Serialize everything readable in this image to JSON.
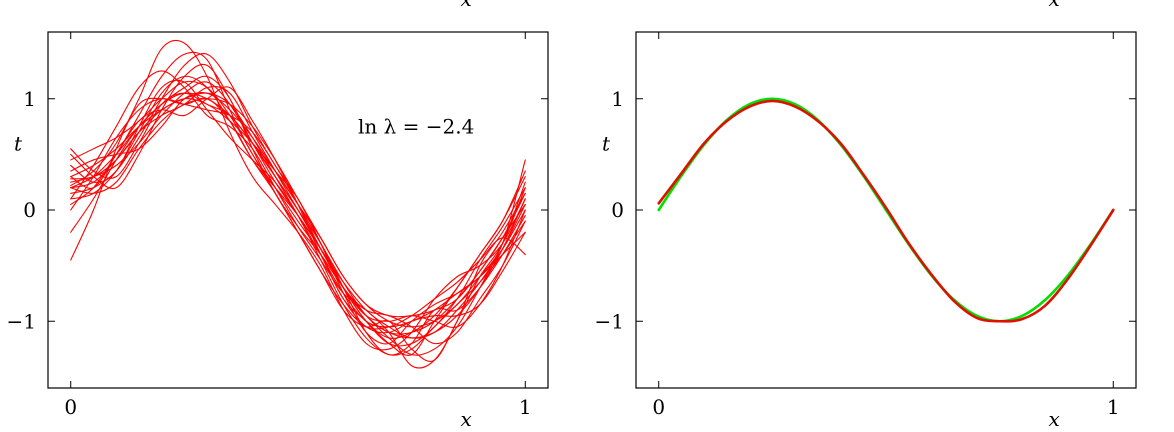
{
  "chart_data": [
    {
      "type": "line",
      "title": "",
      "xlabel": "x",
      "ylabel": "t",
      "xlim": [
        -0.05,
        1.05
      ],
      "ylim": [
        -1.6,
        1.6
      ],
      "xticks": [
        0,
        1
      ],
      "yticks": [
        -1,
        0,
        1
      ],
      "x": [
        0,
        0.05,
        0.1,
        0.15,
        0.2,
        0.25,
        0.3,
        0.35,
        0.4,
        0.45,
        0.5,
        0.55,
        0.6,
        0.65,
        0.7,
        0.75,
        0.8,
        0.85,
        0.9,
        0.95,
        1.0
      ],
      "annotation": "ln λ = −2.4",
      "color": "#ff0000",
      "series": [
        {
          "values": [
            0.22,
            0.35,
            0.6,
            1.0,
            1.45,
            1.5,
            1.2,
            0.7,
            0.3,
            0.05,
            -0.2,
            -0.5,
            -0.9,
            -1.2,
            -1.25,
            -1.1,
            -0.8,
            -0.6,
            -0.5,
            -0.3,
            0.1
          ]
        },
        {
          "values": [
            0.3,
            0.2,
            0.5,
            0.85,
            1.2,
            1.4,
            1.35,
            0.9,
            0.5,
            0.2,
            -0.1,
            -0.4,
            -0.8,
            -1.0,
            -1.2,
            -1.3,
            -1.0,
            -0.7,
            -0.4,
            -0.1,
            0.3
          ]
        },
        {
          "values": [
            -0.45,
            0.0,
            0.55,
            0.95,
            1.0,
            0.95,
            1.0,
            0.8,
            0.45,
            0.15,
            -0.2,
            -0.55,
            -0.9,
            -1.05,
            -1.0,
            -1.25,
            -1.35,
            -1.0,
            -0.6,
            -0.3,
            0.2
          ]
        },
        {
          "values": [
            0.5,
            0.3,
            0.2,
            0.5,
            0.9,
            1.2,
            1.3,
            1.0,
            0.6,
            0.3,
            0.0,
            -0.3,
            -0.7,
            -1.1,
            -1.3,
            -1.2,
            -0.9,
            -0.9,
            -0.7,
            -0.4,
            -0.05
          ]
        },
        {
          "values": [
            0.2,
            0.25,
            0.45,
            0.7,
            0.85,
            0.95,
            1.1,
            1.05,
            0.7,
            0.35,
            0.0,
            -0.35,
            -0.7,
            -0.9,
            -0.95,
            -1.05,
            -1.2,
            -1.1,
            -0.8,
            -0.5,
            -0.1
          ]
        },
        {
          "values": [
            0.1,
            0.4,
            0.75,
            1.1,
            1.25,
            1.1,
            0.85,
            0.75,
            0.55,
            0.2,
            -0.15,
            -0.45,
            -0.75,
            -0.9,
            -1.1,
            -1.4,
            -1.35,
            -1.0,
            -0.5,
            -0.2,
            0.15
          ]
        },
        {
          "values": [
            0.55,
            0.35,
            0.3,
            0.6,
            0.95,
            1.05,
            0.95,
            0.85,
            0.6,
            0.35,
            0.1,
            -0.3,
            -0.75,
            -1.1,
            -1.2,
            -1.0,
            -0.85,
            -0.75,
            -0.6,
            -0.35,
            0.0
          ]
        },
        {
          "values": [
            0.05,
            0.2,
            0.5,
            0.8,
            0.9,
            0.85,
            1.0,
            1.1,
            0.8,
            0.45,
            0.05,
            -0.4,
            -0.8,
            -1.05,
            -1.1,
            -1.0,
            -0.95,
            -0.95,
            -0.85,
            -0.55,
            -0.2
          ]
        },
        {
          "values": [
            0.25,
            0.3,
            0.4,
            0.6,
            0.85,
            1.05,
            1.15,
            0.95,
            0.6,
            0.25,
            -0.05,
            -0.35,
            -0.65,
            -0.9,
            -1.05,
            -1.15,
            -1.1,
            -0.9,
            -0.65,
            -0.35,
            0.05
          ]
        },
        {
          "values": [
            -0.2,
            0.1,
            0.45,
            0.75,
            0.95,
            1.1,
            1.2,
            1.0,
            0.55,
            0.15,
            -0.15,
            -0.4,
            -0.7,
            -0.95,
            -1.15,
            -1.3,
            -1.25,
            -1.05,
            -0.7,
            -0.3,
            0.25
          ]
        },
        {
          "values": [
            0.35,
            0.45,
            0.5,
            0.55,
            0.75,
            1.0,
            1.05,
            0.9,
            0.65,
            0.35,
            0.05,
            -0.25,
            -0.6,
            -0.85,
            -0.95,
            -0.95,
            -0.9,
            -0.8,
            -0.55,
            -0.25,
            0.05
          ]
        },
        {
          "values": [
            0.15,
            0.2,
            0.35,
            0.65,
            1.0,
            1.3,
            1.4,
            1.15,
            0.75,
            0.4,
            0.1,
            -0.3,
            -0.7,
            -1.0,
            -1.2,
            -1.2,
            -1.05,
            -0.8,
            -0.45,
            -0.15,
            0.2
          ]
        },
        {
          "values": [
            0.4,
            0.25,
            0.35,
            0.75,
            1.1,
            1.15,
            0.9,
            0.65,
            0.45,
            0.25,
            -0.05,
            -0.45,
            -0.85,
            -1.15,
            -1.3,
            -1.25,
            -1.05,
            -0.85,
            -0.65,
            -0.4,
            -0.1
          ]
        },
        {
          "values": [
            0.0,
            0.3,
            0.65,
            0.9,
            1.0,
            0.95,
            0.9,
            0.85,
            0.7,
            0.4,
            0.05,
            -0.35,
            -0.7,
            -0.95,
            -1.0,
            -0.95,
            -1.0,
            -1.05,
            -0.85,
            -0.5,
            0.0
          ]
        },
        {
          "values": [
            0.28,
            0.3,
            0.45,
            0.7,
            0.9,
            1.0,
            1.05,
            0.95,
            0.65,
            0.3,
            -0.05,
            -0.4,
            -0.75,
            -1.0,
            -1.05,
            -1.0,
            -0.9,
            -0.75,
            -0.6,
            -0.4,
            -0.2
          ]
        },
        {
          "values": [
            0.2,
            0.15,
            0.25,
            0.55,
            0.8,
            0.95,
            1.0,
            0.95,
            0.75,
            0.45,
            0.1,
            -0.25,
            -0.6,
            -0.85,
            -1.0,
            -1.05,
            -1.0,
            -0.85,
            -0.6,
            -0.3,
            0.45
          ]
        },
        {
          "values": [
            0.45,
            0.55,
            0.65,
            0.8,
            1.0,
            1.15,
            1.1,
            0.85,
            0.5,
            0.15,
            -0.2,
            -0.55,
            -0.85,
            -1.05,
            -1.05,
            -0.95,
            -0.8,
            -0.65,
            -0.45,
            -0.25,
            -0.4
          ]
        },
        {
          "values": [
            0.1,
            0.15,
            0.35,
            0.7,
            1.05,
            1.2,
            1.1,
            0.8,
            0.45,
            0.2,
            -0.05,
            -0.35,
            -0.7,
            -1.0,
            -1.15,
            -1.1,
            -0.95,
            -0.7,
            -0.4,
            -0.1,
            0.35
          ]
        },
        {
          "values": [
            0.3,
            0.4,
            0.55,
            0.75,
            0.9,
            1.0,
            0.95,
            0.8,
            0.6,
            0.35,
            0.05,
            -0.3,
            -0.65,
            -0.95,
            -1.1,
            -1.15,
            -1.1,
            -0.95,
            -0.7,
            -0.35,
            0.1
          ]
        },
        {
          "values": [
            0.2,
            0.3,
            0.5,
            0.75,
            0.95,
            1.05,
            1.0,
            0.85,
            0.6,
            0.3,
            0.0,
            -0.35,
            -0.7,
            -0.95,
            -1.1,
            -1.1,
            -1.0,
            -0.8,
            -0.55,
            -0.25,
            0.15
          ]
        }
      ]
    },
    {
      "type": "line",
      "title": "",
      "xlabel": "x",
      "ylabel": "t",
      "xlim": [
        -0.05,
        1.05
      ],
      "ylim": [
        -1.6,
        1.6
      ],
      "xticks": [
        0,
        1
      ],
      "yticks": [
        -1,
        0,
        1
      ],
      "x": [
        0,
        0.05,
        0.1,
        0.15,
        0.2,
        0.25,
        0.3,
        0.35,
        0.4,
        0.45,
        0.5,
        0.55,
        0.6,
        0.65,
        0.7,
        0.75,
        0.8,
        0.85,
        0.9,
        0.95,
        1.0
      ],
      "series": [
        {
          "color": "#00e000",
          "values": [
            0.0,
            0.309,
            0.588,
            0.809,
            0.951,
            1.0,
            0.951,
            0.809,
            0.588,
            0.309,
            0.0,
            -0.309,
            -0.588,
            -0.809,
            -0.951,
            -1.0,
            -0.951,
            -0.809,
            -0.588,
            -0.309,
            0.0
          ]
        },
        {
          "color": "#dd1100",
          "values": [
            0.06,
            0.33,
            0.6,
            0.8,
            0.93,
            0.98,
            0.93,
            0.8,
            0.6,
            0.32,
            0.02,
            -0.3,
            -0.58,
            -0.82,
            -0.97,
            -1.0,
            -0.98,
            -0.86,
            -0.62,
            -0.32,
            0.0
          ]
        }
      ]
    }
  ]
}
